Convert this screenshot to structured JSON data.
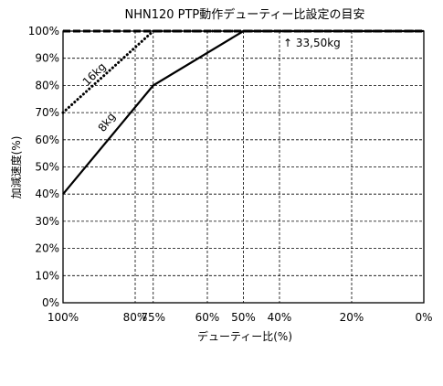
{
  "chart_data": {
    "type": "line",
    "title": "NHN120 PTP動作デューティー比設定の目安",
    "xlabel": "デューティー比(%)",
    "ylabel": "加減速度(%)",
    "x_ticks": [
      "100%",
      "80%",
      "75%",
      "60%",
      "50%",
      "40%",
      "20%",
      "0%"
    ],
    "x_tick_values": [
      100,
      80,
      75,
      60,
      50,
      40,
      20,
      0
    ],
    "y_ticks": [
      "0%",
      "10%",
      "20%",
      "30%",
      "40%",
      "50%",
      "60%",
      "70%",
      "80%",
      "90%",
      "100%"
    ],
    "y_tick_values": [
      0,
      10,
      20,
      30,
      40,
      50,
      60,
      70,
      80,
      90,
      100
    ],
    "xlim": [
      100,
      0
    ],
    "ylim": [
      0,
      100
    ],
    "grid": true,
    "series": [
      {
        "name": "8kg",
        "style": "solid",
        "x": [
          100,
          75,
          50,
          0
        ],
        "y": [
          40,
          80,
          100,
          100
        ]
      },
      {
        "name": "16kg",
        "style": "dotted",
        "x": [
          100,
          75,
          0
        ],
        "y": [
          70,
          100,
          100
        ]
      },
      {
        "name": "33,50kg",
        "style": "dashed",
        "x": [
          100,
          0
        ],
        "y": [
          100,
          100
        ]
      }
    ],
    "annotations": [
      {
        "text": "8kg",
        "series": "8kg"
      },
      {
        "text": "16kg",
        "series": "16kg"
      },
      {
        "text": "↑ 33,50kg",
        "series": "33,50kg"
      }
    ]
  }
}
